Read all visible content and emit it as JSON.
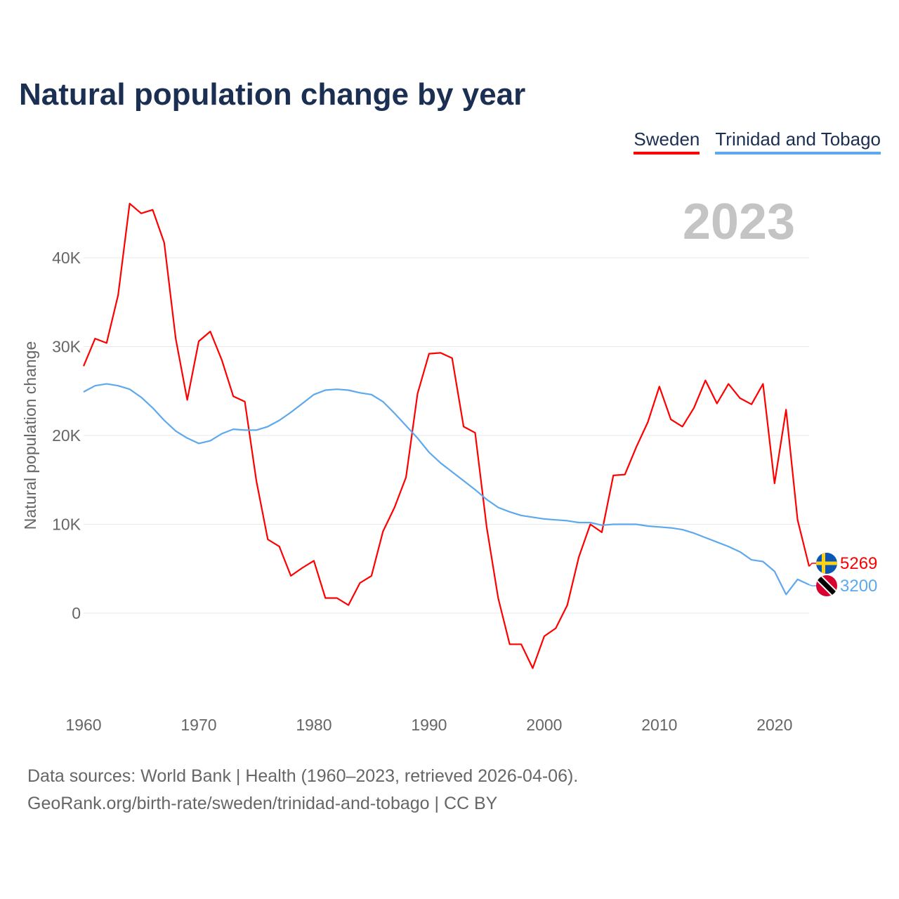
{
  "title": "Natural population change by year",
  "year_label": "2023",
  "footer": {
    "line1": "Data sources: World Bank | Health (1960–2023, retrieved 2026-04-06).",
    "line2": "GeoRank.org/birth-rate/sweden/trinidad-and-tobago | CC BY"
  },
  "chart_data": {
    "type": "line",
    "title": "Natural population change by year",
    "xlabel": "",
    "ylabel": "Natural population change",
    "xlim": [
      1960,
      2023
    ],
    "ylim": [
      -10000,
      47000
    ],
    "grid": true,
    "legend_position": "top-right",
    "x_ticks": [
      1960,
      1970,
      1980,
      1990,
      2000,
      2010,
      2020
    ],
    "x_tick_labels": [
      "1960",
      "1970",
      "1980",
      "1990",
      "2000",
      "2010",
      "2020"
    ],
    "y_ticks": [
      0,
      10000,
      20000,
      30000,
      40000
    ],
    "y_tick_labels": [
      "0",
      "10K",
      "20K",
      "30K",
      "40K"
    ],
    "x_start": 1960,
    "series": [
      {
        "name": "Sweden",
        "color": "#ff0000",
        "end_label": "5269",
        "flag": "sweden-flag",
        "values": [
          27800,
          30900,
          30400,
          35800,
          46100,
          45000,
          45400,
          41700,
          30900,
          24000,
          30600,
          31700,
          28500,
          24400,
          23800,
          14900,
          8300,
          7500,
          4200,
          5100,
          5900,
          1700,
          1700,
          900,
          3400,
          4200,
          9200,
          11900,
          15300,
          24700,
          29200,
          29300,
          28700,
          21000,
          20300,
          9700,
          1700,
          -3500,
          -3500,
          -6200,
          -2600,
          -1700,
          900,
          6300,
          10000,
          9100,
          15500,
          15600,
          18700,
          21500,
          25500,
          21800,
          21000,
          23100,
          26200,
          23600,
          25800,
          24200,
          23500,
          25800,
          14600,
          22900,
          10500,
          5269
        ]
      },
      {
        "name": "Trinidad and Tobago",
        "color": "#5ea8ee",
        "end_label": "3200",
        "flag": "trinidad-and-tobago-flag",
        "values": [
          24900,
          25600,
          25800,
          25600,
          25200,
          24300,
          23100,
          21700,
          20500,
          19700,
          19100,
          19400,
          20200,
          20700,
          20600,
          20600,
          21000,
          21700,
          22600,
          23600,
          24600,
          25100,
          25200,
          25100,
          24800,
          24600,
          23800,
          22500,
          21100,
          19700,
          18100,
          16900,
          15900,
          14900,
          13900,
          12800,
          11900,
          11400,
          11000,
          10800,
          10600,
          10500,
          10400,
          10200,
          10200,
          9900,
          10000,
          10000,
          10000,
          9800,
          9700,
          9600,
          9400,
          9000,
          8500,
          8000,
          7500,
          6900,
          6000,
          5800,
          4700,
          2100,
          3800,
          3200
        ]
      }
    ]
  }
}
